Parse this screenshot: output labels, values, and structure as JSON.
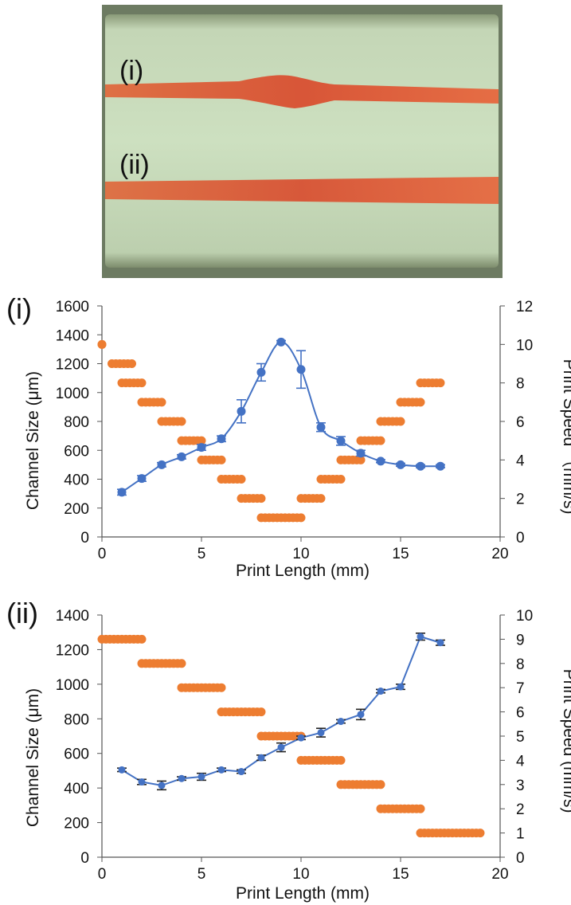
{
  "photo": {
    "labels": [
      "(i)",
      "(ii)"
    ]
  },
  "colors": {
    "channel": "#4472C4",
    "speed": "#ED7D31",
    "axis": "#555555",
    "left_title": "#2F3E8F",
    "right_title": "#ED7D31"
  },
  "chart_data": [
    {
      "panel_label": "(i)",
      "type": "scatter",
      "xlabel": "Print Length (mm)",
      "ylabel": "Channel Size (μm)",
      "y2label": "Print Speed （mm/s)",
      "xlim": [
        0,
        20
      ],
      "xticks": [
        "0",
        "5",
        "10",
        "15",
        "20"
      ],
      "ylim": [
        0,
        1600
      ],
      "yticks": [
        "0",
        "200",
        "400",
        "600",
        "800",
        "1000",
        "1200",
        "1400",
        "1600"
      ],
      "y2lim": [
        0,
        12
      ],
      "y2ticks": [
        "0",
        "2",
        "4",
        "6",
        "8",
        "10",
        "12"
      ],
      "grid": false,
      "series": [
        {
          "axis": "left",
          "style": "markers+smooth-line+errorbars",
          "x": [
            1,
            2,
            3,
            4,
            5,
            6,
            7,
            8,
            9,
            10,
            11,
            12,
            13,
            14,
            15,
            16,
            17
          ],
          "y": [
            310,
            405,
            500,
            555,
            620,
            680,
            870,
            1140,
            1350,
            1160,
            760,
            665,
            580,
            525,
            500,
            490,
            490
          ],
          "err": [
            20,
            20,
            15,
            15,
            20,
            20,
            80,
            60,
            10,
            130,
            30,
            30,
            20,
            10,
            10,
            10,
            10
          ]
        },
        {
          "axis": "right",
          "style": "steps",
          "segments": [
            {
              "x": [
                0,
                0
              ],
              "y": 10
            },
            {
              "x": [
                0.5,
                1.5
              ],
              "y": 9
            },
            {
              "x": [
                1,
                2
              ],
              "y": 8
            },
            {
              "x": [
                2,
                3
              ],
              "y": 7
            },
            {
              "x": [
                3,
                4
              ],
              "y": 6
            },
            {
              "x": [
                4,
                5
              ],
              "y": 5
            },
            {
              "x": [
                5,
                6
              ],
              "y": 4
            },
            {
              "x": [
                6,
                7
              ],
              "y": 3
            },
            {
              "x": [
                7,
                8
              ],
              "y": 2
            },
            {
              "x": [
                8,
                10
              ],
              "y": 1
            },
            {
              "x": [
                10,
                11
              ],
              "y": 2
            },
            {
              "x": [
                11,
                12
              ],
              "y": 3
            },
            {
              "x": [
                12,
                13
              ],
              "y": 4
            },
            {
              "x": [
                13,
                14
              ],
              "y": 5
            },
            {
              "x": [
                14,
                15
              ],
              "y": 6
            },
            {
              "x": [
                15,
                16
              ],
              "y": 7
            },
            {
              "x": [
                16,
                17
              ],
              "y": 8
            }
          ]
        }
      ]
    },
    {
      "panel_label": "(ii)",
      "type": "scatter",
      "xlabel": "Print Length (mm)",
      "ylabel": "Channel Size (μm)",
      "y2label": "Print Speed (mm/s)",
      "xlim": [
        0,
        20
      ],
      "xticks": [
        "0",
        "5",
        "10",
        "15",
        "20"
      ],
      "ylim": [
        0,
        1400
      ],
      "yticks": [
        "0",
        "200",
        "400",
        "600",
        "800",
        "1000",
        "1200",
        "1400"
      ],
      "y2lim": [
        0,
        10
      ],
      "y2ticks": [
        "0",
        "1",
        "2",
        "3",
        "4",
        "5",
        "6",
        "7",
        "8",
        "9",
        "10"
      ],
      "grid": false,
      "series": [
        {
          "axis": "left",
          "style": "markers+line+errorbars",
          "x": [
            1,
            2,
            3,
            4,
            5,
            6,
            7,
            8,
            9,
            10,
            11,
            12,
            13,
            14,
            15,
            16,
            17
          ],
          "y": [
            505,
            435,
            415,
            455,
            465,
            505,
            495,
            575,
            635,
            690,
            720,
            785,
            825,
            960,
            985,
            1275,
            1240
          ],
          "err": [
            10,
            15,
            25,
            10,
            20,
            10,
            10,
            15,
            25,
            10,
            25,
            10,
            30,
            10,
            15,
            20,
            15
          ]
        },
        {
          "axis": "right",
          "style": "steps",
          "segments": [
            {
              "x": [
                0,
                2
              ],
              "y": 9
            },
            {
              "x": [
                2,
                4
              ],
              "y": 8
            },
            {
              "x": [
                4,
                6
              ],
              "y": 7
            },
            {
              "x": [
                6,
                8
              ],
              "y": 6
            },
            {
              "x": [
                8,
                10
              ],
              "y": 5
            },
            {
              "x": [
                10,
                12
              ],
              "y": 4
            },
            {
              "x": [
                12,
                14
              ],
              "y": 3
            },
            {
              "x": [
                14,
                16
              ],
              "y": 2
            },
            {
              "x": [
                16,
                19
              ],
              "y": 1
            }
          ]
        }
      ]
    }
  ]
}
